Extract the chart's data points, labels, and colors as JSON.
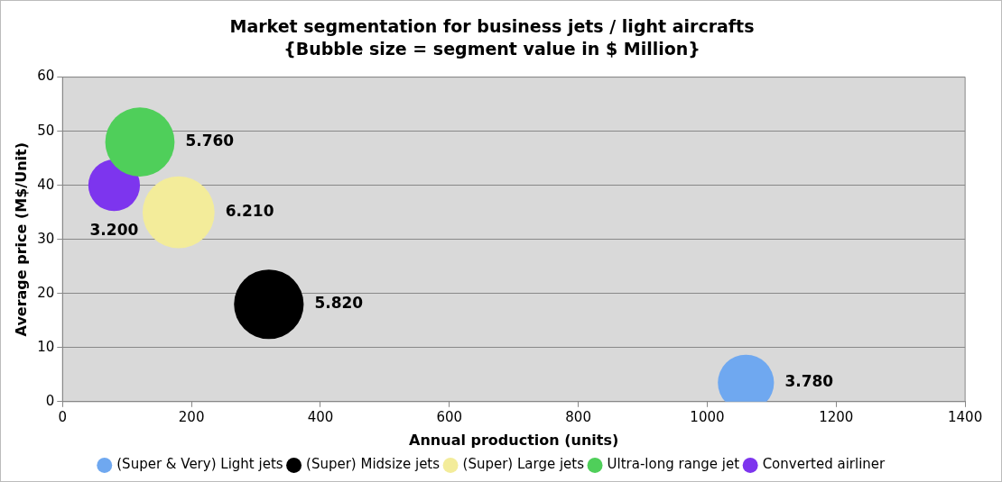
{
  "chart_data": {
    "type": "bubble",
    "title": "Market segmentation for business jets / light aircrafts",
    "subtitle": "{Bubble size = segment value in $ Million}",
    "xlabel": "Annual production (units)",
    "ylabel": "Average price (M$/Unit)",
    "xlim": [
      0,
      1400
    ],
    "xticks": [
      0,
      200,
      400,
      600,
      800,
      1000,
      1200,
      1400
    ],
    "ylim": [
      0,
      60
    ],
    "yticks": [
      0,
      10,
      20,
      30,
      40,
      50,
      60
    ],
    "grid": "y",
    "legend": "bottom",
    "series": [
      {
        "name": "(Super & Very) Light jets",
        "color": "#6fa8f0",
        "x": [
          1060
        ],
        "values": [
          3.5
        ],
        "sizes": [
          3.78
        ],
        "value_labels": [
          "3.780"
        ]
      },
      {
        "name": "(Super) Midsize jets",
        "color": "#000000",
        "x": [
          320
        ],
        "values": [
          18
        ],
        "sizes": [
          5.82
        ],
        "value_labels": [
          "5.820"
        ]
      },
      {
        "name": "(Super) Large jets",
        "color": "#f3ec9a",
        "x": [
          180
        ],
        "values": [
          35
        ],
        "sizes": [
          6.21
        ],
        "value_labels": [
          "6.210"
        ]
      },
      {
        "name": "Ultra-long range jet",
        "color": "#4fcf5a",
        "x": [
          120
        ],
        "values": [
          48
        ],
        "sizes": [
          5.76
        ],
        "value_labels": [
          "5.760"
        ]
      },
      {
        "name": "Converted airliner",
        "color": "#7d35ee",
        "x": [
          80
        ],
        "values": [
          40
        ],
        "sizes": [
          3.2
        ],
        "value_labels": [
          "3.200"
        ]
      }
    ]
  }
}
